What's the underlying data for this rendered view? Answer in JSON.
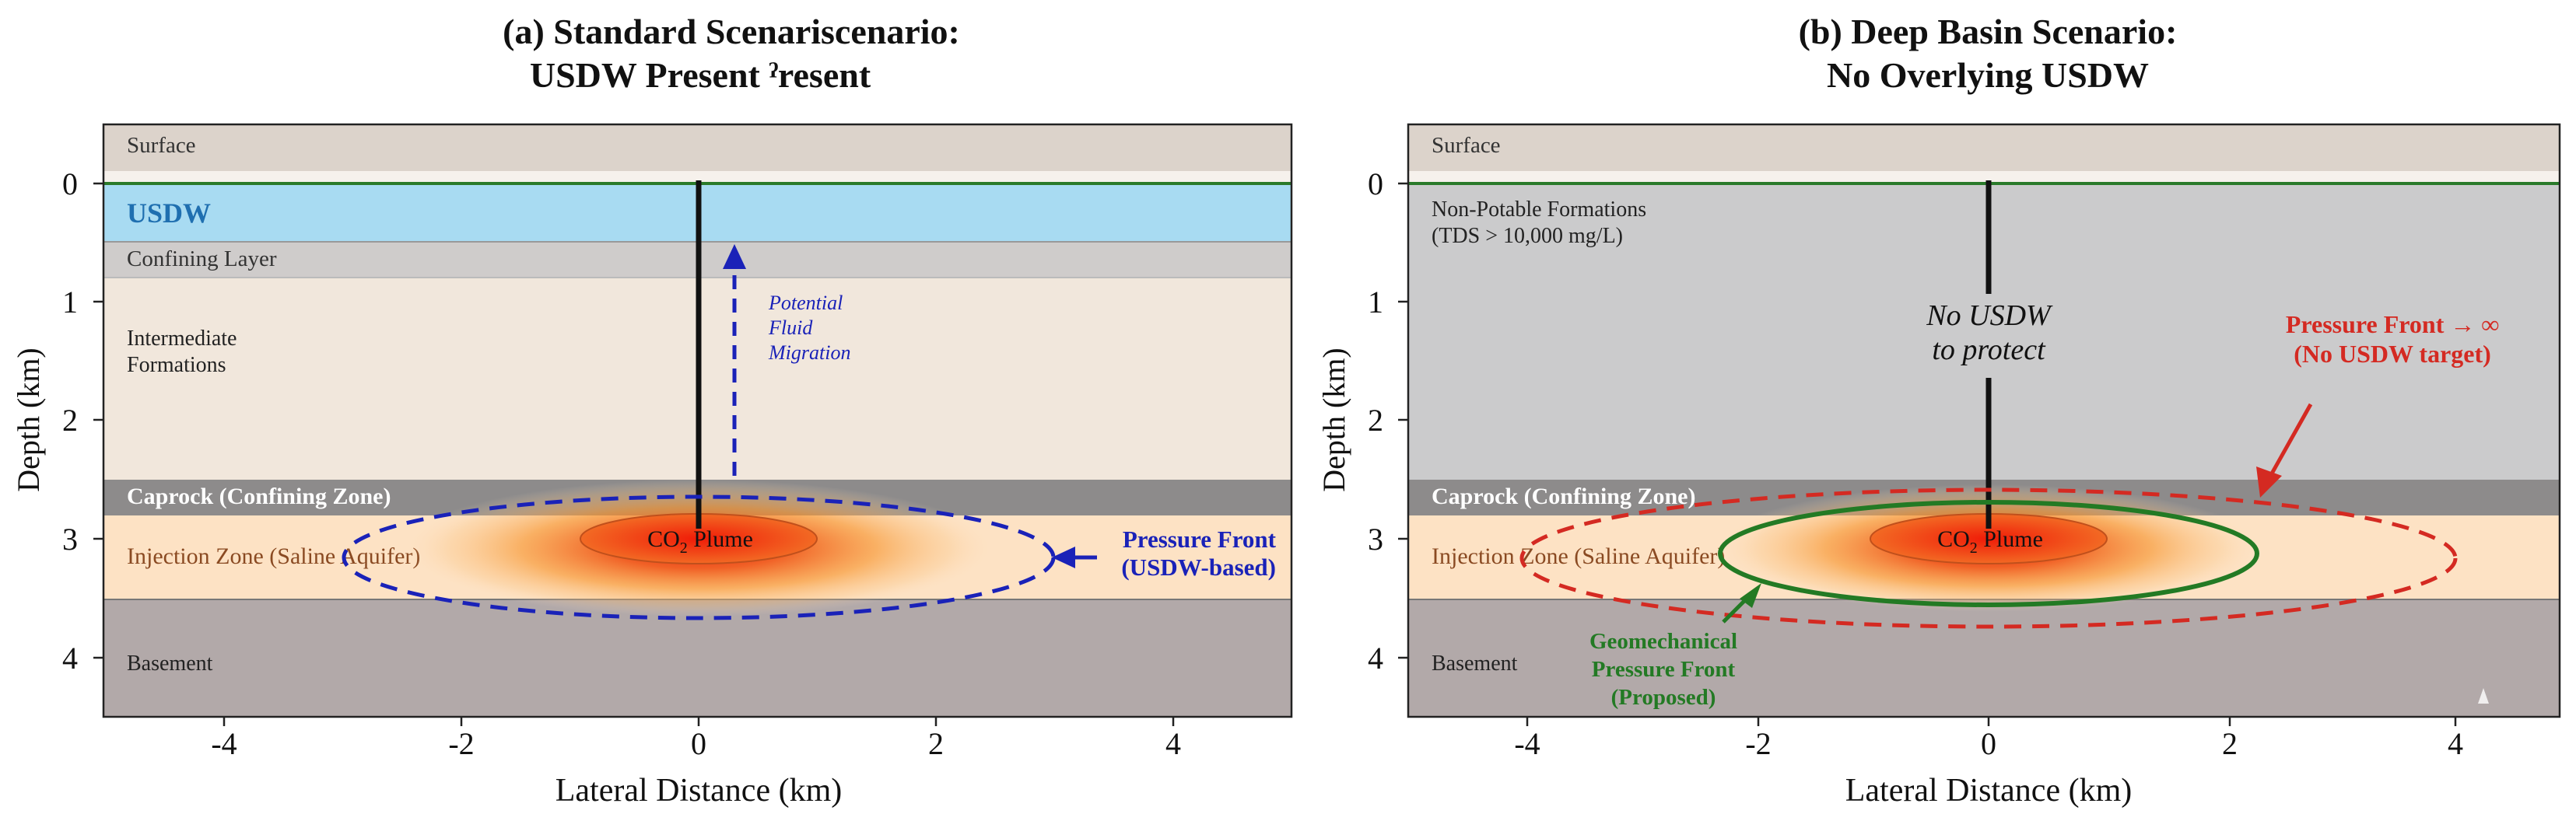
{
  "panel_a": {
    "title_line1": "(a) Standard Scenariscenario:",
    "title_line2": "USDW Present ˀresent",
    "layers": {
      "surface": "Surface",
      "usdw": "USDW",
      "confining": "Confining Layer",
      "intermediate_1": "Intermediate",
      "intermediate_2": "Formations",
      "caprock": "Caprock (Confining Zone)",
      "injection": "Injection Zone (Saline Aquifer)",
      "basement": "Basement"
    },
    "plume_label": "CO",
    "plume_sub": "2",
    "plume_suffix": " Plume",
    "migration_1": "Potential",
    "migration_2": "Fluid",
    "migration_3": "Migration",
    "pressure_1": "Pressure Front",
    "pressure_2": "(USDW-based)"
  },
  "panel_b": {
    "title_line1": "(b) Deep Basin Scenario:",
    "title_line2": "No Overlying USDW",
    "layers": {
      "surface": "Surface",
      "nonpotable_1": "Non-Potable Formations",
      "nonpotable_2": "(TDS > 10,000 mg/L)",
      "caprock": "Caprock (Confining Zone)",
      "injection": "Injection Zone (Saline Aquifer)",
      "basement": "Basement"
    },
    "plume_label": "CO",
    "plume_sub": "2",
    "plume_suffix": " Plume",
    "no_usdw_1": "No USDW",
    "no_usdw_2": "to protect",
    "pressure_1": "Pressure Front → ∞",
    "pressure_2": "(No USDW target)",
    "geo_1": "Geomechanical",
    "geo_2": "Pressure Front",
    "geo_3": "(Proposed)"
  },
  "axes": {
    "ylabel": "Depth (km)",
    "xlabel": "Lateral Distance (km)",
    "yticks": [
      "0",
      "1",
      "2",
      "3",
      "4"
    ],
    "xticks": [
      "-4",
      "-2",
      "0",
      "2",
      "4"
    ]
  },
  "colors": {
    "surface": "#dcd3cb",
    "usdw": "#a8dbf2",
    "confining": "#cfcccb",
    "intermediate": "#f1e7dc",
    "caprock": "#8d8b8b",
    "injection": "#fde2c4",
    "basement": "#b2a9a9",
    "nonpotable": "#cbcbcc",
    "blue_front": "#1a22b8",
    "red_front": "#d42a22",
    "green_front": "#237a24"
  }
}
